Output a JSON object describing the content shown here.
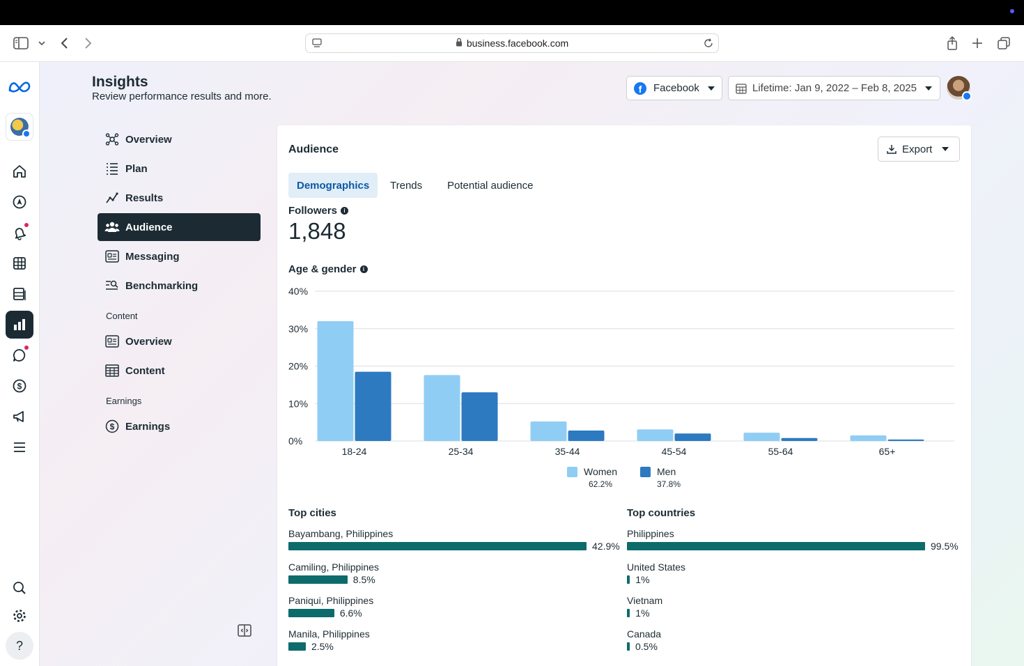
{
  "browser": {
    "url": "business.facebook.com"
  },
  "header": {
    "title": "Insights",
    "subtitle": "Review performance results and more.",
    "platform_select": "Facebook",
    "date_select": "Lifetime: Jan 9, 2022 – Feb 8, 2025"
  },
  "sidebar": {
    "items": [
      {
        "label": "Overview",
        "icon": "network-icon"
      },
      {
        "label": "Plan",
        "icon": "list-icon"
      },
      {
        "label": "Results",
        "icon": "trend-icon"
      },
      {
        "label": "Audience",
        "icon": "people-icon",
        "active": true
      },
      {
        "label": "Messaging",
        "icon": "messaging-icon"
      },
      {
        "label": "Benchmarking",
        "icon": "benchmark-icon"
      }
    ],
    "content_section": "Content",
    "content_items": [
      {
        "label": "Overview",
        "icon": "content-overview-icon"
      },
      {
        "label": "Content",
        "icon": "table-icon"
      }
    ],
    "earnings_section": "Earnings",
    "earnings_items": [
      {
        "label": "Earnings",
        "icon": "dollar-icon"
      }
    ]
  },
  "card": {
    "title": "Audience",
    "export_label": "Export",
    "tabs": [
      "Demographics",
      "Trends",
      "Potential audience"
    ],
    "followers_label": "Followers",
    "followers_value": "1,848",
    "age_gender_label": "Age & gender"
  },
  "chart_data": {
    "type": "bar",
    "categories": [
      "18-24",
      "25-34",
      "35-44",
      "45-54",
      "55-64",
      "65+"
    ],
    "series": [
      {
        "name": "Women",
        "values": [
          32,
          17.6,
          5.2,
          3.1,
          2.2,
          1.5
        ],
        "color": "#90cdf4",
        "share": "62.2%"
      },
      {
        "name": "Men",
        "values": [
          18.5,
          13,
          2.8,
          2.0,
          0.8,
          0.4
        ],
        "color": "#2d7ac0",
        "share": "37.8%"
      }
    ],
    "y_ticks": [
      "0%",
      "10%",
      "20%",
      "30%",
      "40%"
    ],
    "ylim": [
      0,
      40
    ],
    "grid": true,
    "legend": "bottom"
  },
  "top_cities": {
    "title": "Top cities",
    "items": [
      {
        "name": "Bayambang, Philippines",
        "value": "42.9%",
        "pct": 42.9
      },
      {
        "name": "Camiling, Philippines",
        "value": "8.5%",
        "pct": 8.5
      },
      {
        "name": "Paniqui, Philippines",
        "value": "6.6%",
        "pct": 6.6
      },
      {
        "name": "Manila, Philippines",
        "value": "2.5%",
        "pct": 2.5
      }
    ]
  },
  "top_countries": {
    "title": "Top countries",
    "items": [
      {
        "name": "Philippines",
        "value": "99.5%",
        "pct": 99.5
      },
      {
        "name": "United States",
        "value": "1%",
        "pct": 1
      },
      {
        "name": "Vietnam",
        "value": "1%",
        "pct": 1
      },
      {
        "name": "Canada",
        "value": "0.5%",
        "pct": 0.5
      }
    ]
  }
}
